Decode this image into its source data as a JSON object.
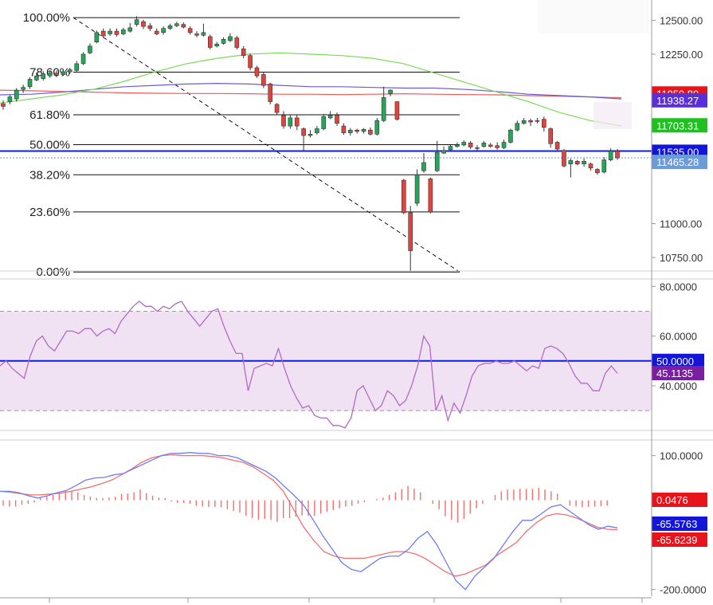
{
  "colors": {
    "bull": "#26a65b",
    "bear": "#e0443e",
    "rsi_line": "#b06ac8",
    "rsi_band": "#f0e2f2",
    "ma_red": "#ef5b5b",
    "ma_purple": "#6b5bd6",
    "ma_green": "#7ed957",
    "blue_line": "#0f1de0",
    "macd_line": "#6f7cf5",
    "signal_line": "#f07070",
    "hist": "#f07070"
  },
  "chart_data": [
    {
      "type": "candlestick",
      "panel": "price",
      "ylim": [
        10650,
        12650
      ],
      "yticks": [
        "12500.00",
        "12250.00",
        "11000.00",
        "10750.00"
      ],
      "ytick_values": [
        12500,
        12250,
        11000,
        10750
      ],
      "fib_levels": [
        {
          "label": "100.00%",
          "value": 12520
        },
        {
          "label": "78.60%",
          "value": 12118
        },
        {
          "label": "61.80%",
          "value": 11803
        },
        {
          "label": "50.00%",
          "value": 11582
        },
        {
          "label": "38.20%",
          "value": 11360
        },
        {
          "label": "23.60%",
          "value": 11086
        },
        {
          "label": "0.00%",
          "value": 10643
        }
      ],
      "price_tags": [
        {
          "label": "11959.89",
          "value": 11960,
          "color": "#e8141c"
        },
        {
          "label": "11938.27",
          "value": 11910,
          "color": "#5b2fd8"
        },
        {
          "label": "11703.31",
          "value": 11725,
          "color": "#1ec21e"
        },
        {
          "label": "11535.00",
          "value": 11530,
          "color": "#1316d8"
        },
        {
          "label": "11465.28",
          "value": 11455,
          "color": "#6b9bd8"
        }
      ],
      "horizontal_line": 11535,
      "current_price_dotted": 11485,
      "candles": [
        [
          11885,
          11865,
          11910,
          11840
        ],
        [
          11900,
          11935,
          11950,
          11880
        ],
        [
          11920,
          11985,
          12000,
          11900
        ],
        [
          11990,
          12005,
          12025,
          11965
        ],
        [
          12010,
          12065,
          12080,
          11995
        ],
        [
          12060,
          12090,
          12115,
          12050
        ],
        [
          12070,
          12105,
          12125,
          12055
        ],
        [
          12090,
          12110,
          12130,
          12075
        ],
        [
          12110,
          12095,
          12130,
          12080
        ],
        [
          12100,
          12120,
          12140,
          12090
        ],
        [
          12120,
          12135,
          12150,
          12105
        ],
        [
          12130,
          12180,
          12200,
          12120
        ],
        [
          12180,
          12250,
          12265,
          12170
        ],
        [
          12260,
          12310,
          12330,
          12250
        ],
        [
          12340,
          12410,
          12425,
          12330
        ],
        [
          12420,
          12385,
          12440,
          12370
        ],
        [
          12400,
          12420,
          12440,
          12385
        ],
        [
          12420,
          12395,
          12440,
          12380
        ],
        [
          12400,
          12430,
          12445,
          12390
        ],
        [
          12420,
          12445,
          12480,
          12410
        ],
        [
          12470,
          12505,
          12530,
          12455
        ],
        [
          12490,
          12455,
          12505,
          12435
        ],
        [
          12460,
          12440,
          12480,
          12420
        ],
        [
          12420,
          12400,
          12440,
          12390
        ],
        [
          12410,
          12440,
          12455,
          12395
        ],
        [
          12440,
          12460,
          12475,
          12430
        ],
        [
          12460,
          12475,
          12490,
          12450
        ],
        [
          12470,
          12450,
          12485,
          12440
        ],
        [
          12440,
          12410,
          12455,
          12395
        ],
        [
          12400,
          12390,
          12420,
          12375
        ],
        [
          12390,
          12410,
          12475,
          12380
        ],
        [
          12380,
          12300,
          12395,
          12285
        ],
        [
          12310,
          12325,
          12340,
          12300
        ],
        [
          12330,
          12360,
          12375,
          12320
        ],
        [
          12350,
          12380,
          12405,
          12340
        ],
        [
          12370,
          12300,
          12385,
          12285
        ],
        [
          12290,
          12240,
          12310,
          12220
        ],
        [
          12240,
          12150,
          12255,
          12130
        ],
        [
          12150,
          12090,
          12165,
          12075
        ],
        [
          12100,
          12020,
          12115,
          12000
        ],
        [
          12030,
          11900,
          12040,
          11880
        ],
        [
          11880,
          11820,
          11890,
          11800
        ],
        [
          11800,
          11720,
          11830,
          11700
        ],
        [
          11720,
          11780,
          11800,
          11700
        ],
        [
          11780,
          11720,
          11800,
          11690
        ],
        [
          11700,
          11650,
          11710,
          11530
        ],
        [
          11650,
          11660,
          11690,
          11635
        ],
        [
          11670,
          11700,
          11720,
          11655
        ],
        [
          11700,
          11790,
          11810,
          11690
        ],
        [
          11780,
          11800,
          11830,
          11770
        ],
        [
          11800,
          11740,
          11820,
          11720
        ],
        [
          11720,
          11670,
          11740,
          11655
        ],
        [
          11670,
          11690,
          11705,
          11650
        ],
        [
          11690,
          11680,
          11700,
          11665
        ],
        [
          11680,
          11695,
          11705,
          11665
        ],
        [
          11690,
          11660,
          11710,
          11650
        ],
        [
          11660,
          11760,
          11780,
          11650
        ],
        [
          11760,
          11930,
          12010,
          11750
        ],
        [
          11960,
          11985,
          11990,
          11940
        ],
        [
          11900,
          11770,
          11900,
          11760
        ],
        [
          11320,
          11080,
          11330,
          11070
        ],
        [
          11080,
          10800,
          11130,
          10650
        ],
        [
          11150,
          11360,
          11400,
          11130
        ],
        [
          11390,
          11450,
          11520,
          11375
        ],
        [
          11330,
          11085,
          11340,
          11075
        ],
        [
          11390,
          11525,
          11610,
          11380
        ],
        [
          11520,
          11540,
          11570,
          11515
        ],
        [
          11545,
          11570,
          11580,
          11535
        ],
        [
          11570,
          11580,
          11600,
          11560
        ],
        [
          11580,
          11600,
          11615,
          11570
        ],
        [
          11595,
          11565,
          11610,
          11550
        ],
        [
          11560,
          11555,
          11580,
          11540
        ],
        [
          11570,
          11595,
          11610,
          11560
        ],
        [
          11580,
          11570,
          11595,
          11560
        ],
        [
          11575,
          11560,
          11600,
          11545
        ],
        [
          11560,
          11600,
          11620,
          11550
        ],
        [
          11600,
          11690,
          11700,
          11590
        ],
        [
          11690,
          11740,
          11760,
          11680
        ],
        [
          11740,
          11760,
          11780,
          11730
        ],
        [
          11760,
          11750,
          11775,
          11720
        ],
        [
          11760,
          11755,
          11780,
          11740
        ],
        [
          11770,
          11710,
          11790,
          11680
        ],
        [
          11700,
          11590,
          11710,
          11560
        ],
        [
          11600,
          11550,
          11610,
          11530
        ],
        [
          11540,
          11425,
          11550,
          11415
        ],
        [
          11440,
          11465,
          11480,
          11340
        ],
        [
          11460,
          11440,
          11470,
          11430
        ],
        [
          11440,
          11460,
          11480,
          11420
        ],
        [
          11440,
          11410,
          11450,
          11390
        ],
        [
          11400,
          11375,
          11410,
          11360
        ],
        [
          11380,
          11470,
          11490,
          11370
        ],
        [
          11470,
          11535,
          11555,
          11460
        ],
        [
          11535,
          11485,
          11550,
          11470
        ]
      ]
    },
    {
      "type": "line",
      "panel": "rsi",
      "ylim": [
        22,
        83
      ],
      "yticks": [
        "80.0000",
        "60.0000",
        "40.0000"
      ],
      "ytick_values": [
        80,
        60,
        40
      ],
      "band": [
        30,
        70
      ],
      "midline": 50,
      "value_tags": [
        {
          "label": "50.0000",
          "value": 50,
          "color": "#1316d8"
        },
        {
          "label": "45.1135",
          "value": 45.1,
          "color": "#7b1fa2"
        }
      ],
      "rsi_line_values": [
        48,
        50,
        47,
        45,
        43,
        52,
        58,
        60,
        56,
        54,
        58,
        62,
        62,
        61,
        63,
        63,
        60,
        62,
        63,
        61,
        66,
        69,
        72,
        74,
        72,
        72,
        70,
        72,
        71,
        73,
        74,
        70,
        67,
        64,
        67,
        70,
        71,
        64,
        58,
        53,
        53,
        38,
        47,
        48,
        49,
        48,
        55,
        47,
        40,
        35,
        31,
        32,
        28,
        27,
        27,
        24,
        24,
        23,
        27,
        38,
        40,
        35,
        30,
        32,
        38,
        36,
        32,
        34,
        40,
        48,
        60,
        56,
        30,
        36,
        26,
        33,
        29,
        36,
        44,
        48,
        49,
        49,
        50,
        49,
        49,
        50,
        48,
        46,
        48,
        47,
        55,
        56,
        55,
        53,
        49,
        44,
        41,
        41,
        38,
        38,
        45,
        48,
        45
      ]
    },
    {
      "type": "line",
      "panel": "macd",
      "ylim": [
        -215,
        135
      ],
      "yticks": [
        "100.0000",
        "-200.0000"
      ],
      "ytick_values": [
        100,
        -200
      ],
      "value_tags": [
        {
          "label": "0.0476",
          "value": 0.05,
          "color": "#e8141c"
        },
        {
          "label": "-65.5763",
          "value": -65.6,
          "color": "#1316d8"
        },
        {
          "label": "-65.6239",
          "value": -65.6,
          "color": "#e8141c"
        }
      ],
      "macd_line_values": [
        20,
        20,
        17,
        10,
        5,
        10,
        17,
        22,
        33,
        45,
        50,
        51,
        57,
        60,
        70,
        80,
        90,
        100,
        105,
        105,
        107,
        105,
        105,
        100,
        100,
        95,
        85,
        75,
        65,
        50,
        30,
        10,
        -12,
        -45,
        -80,
        -110,
        -140,
        -155,
        -160,
        -145,
        -130,
        -125,
        -125,
        -110,
        -85,
        -70,
        -100,
        -140,
        -180,
        -200,
        -170,
        -150,
        -130,
        -100,
        -70,
        -45,
        -45,
        -30,
        -15,
        -10,
        -25,
        -40,
        -55,
        -65,
        -58,
        -62
      ],
      "signal_line_values": [
        20,
        18,
        15,
        12,
        12,
        14,
        16,
        20,
        25,
        30,
        37,
        45,
        57,
        70,
        85,
        95,
        100,
        102,
        100,
        100,
        100,
        98,
        95,
        90,
        85,
        75,
        60,
        45,
        20,
        -20,
        -60,
        -90,
        -115,
        -125,
        -130,
        -130,
        -130,
        -125,
        -120,
        -115,
        -115,
        -120,
        -130,
        -145,
        -160,
        -170,
        -165,
        -155,
        -145,
        -125,
        -110,
        -95,
        -70,
        -50,
        -35,
        -30,
        -33,
        -40,
        -50,
        -60,
        -65,
        -66
      ],
      "histogram_values": [
        -12,
        -14,
        -14,
        -10,
        -8,
        -5,
        5,
        8,
        12,
        18,
        22,
        22,
        18,
        12,
        8,
        5,
        5,
        6,
        8,
        14,
        15,
        18,
        24,
        16,
        10,
        6,
        5,
        -3,
        -6,
        -6,
        -8,
        -12,
        -14,
        -15,
        -15,
        -16,
        -20,
        -24,
        -28,
        -35,
        -40,
        -44,
        -42,
        -44,
        -48,
        -40,
        -40,
        -37,
        -34,
        -35,
        -35,
        -30,
        -26,
        -22,
        -18,
        -14,
        -12,
        -8,
        -4,
        0,
        3,
        6,
        12,
        18,
        25,
        32,
        26,
        18,
        0,
        -8,
        -20,
        -36,
        -44,
        -50,
        -42,
        -30,
        -18,
        -8,
        0,
        12,
        20,
        24,
        24,
        26,
        26,
        26,
        28,
        24,
        20,
        15,
        0,
        -12,
        -14,
        -16,
        -15,
        -14,
        -13,
        -12,
        0
      ]
    }
  ]
}
